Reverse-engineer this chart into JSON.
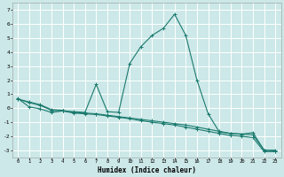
{
  "xlabel": "Humidex (Indice chaleur)",
  "bg_color": "#cce8e8",
  "grid_color": "#ffffff",
  "line_color": "#1a7a6e",
  "xlim": [
    -0.5,
    23.5
  ],
  "ylim": [
    -3.5,
    7.5
  ],
  "xticks": [
    0,
    1,
    2,
    3,
    4,
    5,
    6,
    7,
    8,
    9,
    10,
    11,
    12,
    13,
    14,
    15,
    16,
    17,
    18,
    19,
    20,
    21,
    22,
    23
  ],
  "yticks": [
    -3,
    -2,
    -1,
    0,
    1,
    2,
    3,
    4,
    5,
    6,
    7
  ],
  "line1_x": [
    0,
    1,
    2,
    3,
    4,
    5,
    6,
    7,
    8,
    9,
    10,
    11,
    12,
    13,
    14,
    15,
    16,
    17,
    18,
    19,
    20,
    21,
    22,
    23
  ],
  "line1_y": [
    0.7,
    0.1,
    -0.05,
    -0.3,
    -0.2,
    -0.25,
    -0.3,
    1.7,
    -0.25,
    -0.3,
    3.2,
    4.4,
    5.2,
    5.7,
    6.7,
    5.2,
    2.0,
    -0.4,
    -1.7,
    -1.8,
    -1.85,
    -1.75,
    -3.0,
    -3.0
  ],
  "line2_x": [
    0,
    1,
    2,
    3,
    4,
    5,
    6,
    7,
    8,
    9,
    10,
    11,
    12,
    13,
    14,
    15,
    16,
    17,
    18,
    19,
    20,
    21,
    22,
    23
  ],
  "line2_y": [
    0.65,
    0.45,
    0.25,
    -0.1,
    -0.15,
    -0.3,
    -0.35,
    -0.4,
    -0.5,
    -0.6,
    -0.7,
    -0.8,
    -0.9,
    -1.0,
    -1.1,
    -1.2,
    -1.35,
    -1.5,
    -1.65,
    -1.8,
    -1.85,
    -1.9,
    -3.0,
    -3.05
  ],
  "line3_x": [
    0,
    1,
    2,
    3,
    4,
    5,
    6,
    7,
    8,
    9,
    10,
    11,
    12,
    13,
    14,
    15,
    16,
    17,
    18,
    19,
    20,
    21,
    22,
    23
  ],
  "line3_y": [
    0.65,
    0.4,
    0.2,
    -0.15,
    -0.2,
    -0.35,
    -0.4,
    -0.45,
    -0.55,
    -0.65,
    -0.75,
    -0.9,
    -1.0,
    -1.1,
    -1.2,
    -1.35,
    -1.5,
    -1.65,
    -1.8,
    -1.95,
    -2.0,
    -2.1,
    -3.1,
    -3.1
  ]
}
